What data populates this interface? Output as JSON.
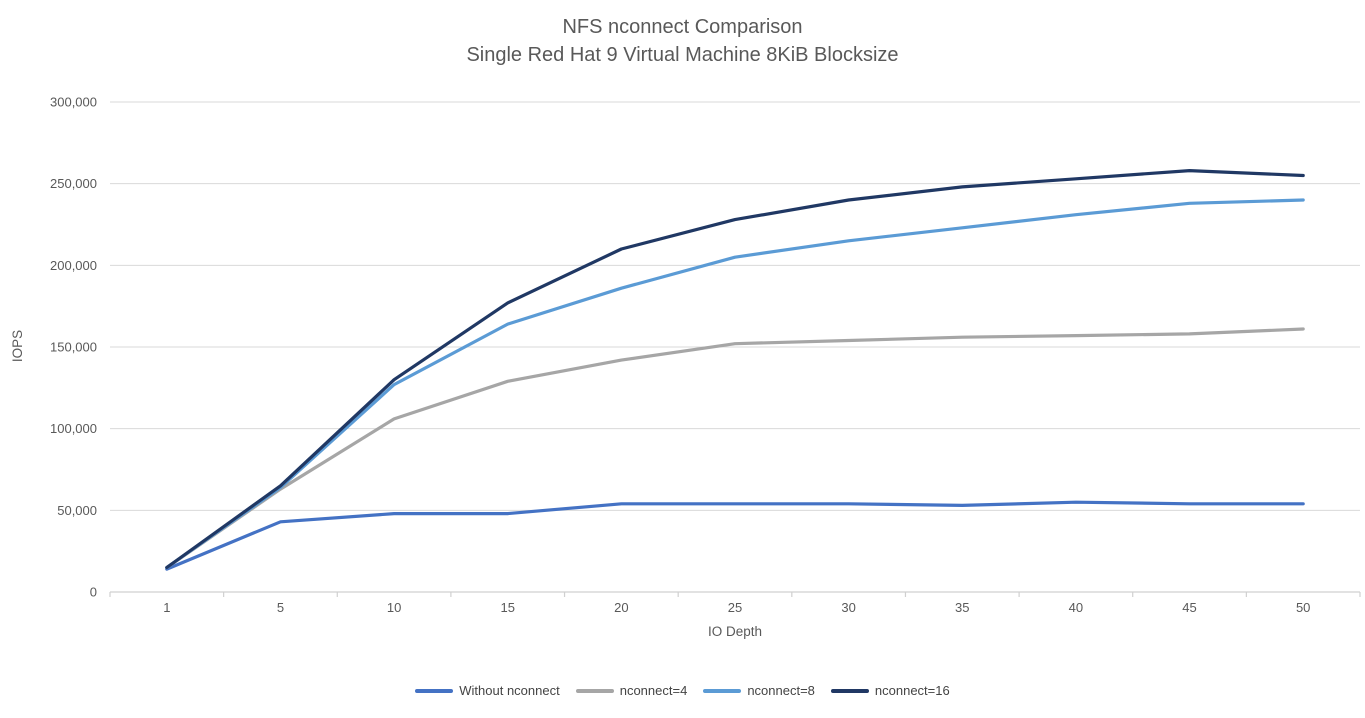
{
  "chart_data": {
    "type": "line",
    "title": "NFS nconnect Comparison",
    "subtitle": "Single Red Hat 9 Virtual Machine 8KiB Blocksize",
    "xlabel": "IO Depth",
    "ylabel": "IOPS",
    "categories": [
      1,
      5,
      10,
      15,
      20,
      25,
      30,
      35,
      40,
      45,
      50
    ],
    "ylim": [
      0,
      300000
    ],
    "ytick_step": 50000,
    "ytick_labels": [
      "0",
      "50,000",
      "100,000",
      "150,000",
      "200,000",
      "250,000",
      "300,000"
    ],
    "grid": "horizontal",
    "legend_position": "bottom",
    "series": [
      {
        "name": "Without nconnect",
        "color": "#4472C4",
        "values": [
          14000,
          43000,
          48000,
          48000,
          54000,
          54000,
          54000,
          53000,
          55000,
          54000,
          54000
        ]
      },
      {
        "name": "nconnect=4",
        "color": "#A6A6A6",
        "values": [
          15000,
          63000,
          106000,
          129000,
          142000,
          152000,
          154000,
          156000,
          157000,
          158000,
          161000
        ]
      },
      {
        "name": "nconnect=8",
        "color": "#5B9BD5",
        "values": [
          15000,
          64000,
          127000,
          164000,
          186000,
          205000,
          215000,
          223000,
          231000,
          238000,
          240000
        ]
      },
      {
        "name": "nconnect=16",
        "color": "#203864",
        "values": [
          15000,
          65000,
          130000,
          177000,
          210000,
          228000,
          240000,
          248000,
          253000,
          258000,
          255000
        ]
      }
    ],
    "styles": {
      "gridline_color": "#D9D9D9",
      "axis_color": "#D0D0D0",
      "tick_label_color": "#595959",
      "title_color": "#595959",
      "legend_text_color": "#444444",
      "line_width": 3.2
    }
  }
}
